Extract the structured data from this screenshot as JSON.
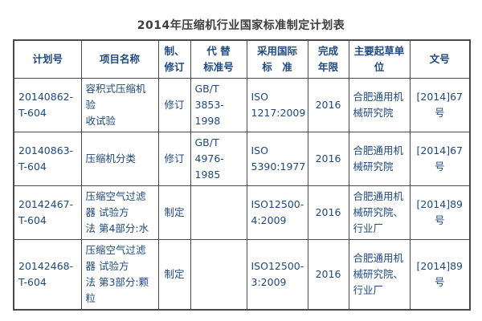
{
  "page": {
    "title": "2014年压缩机行业国家标准制定计划表"
  },
  "colors": {
    "text_navy": "#1F497D",
    "title_gray": "#3d3d3d",
    "border": "#4a4a4a",
    "background": "#ffffff"
  },
  "table": {
    "headers": {
      "plan_no": "计划号",
      "project_name": "项目名称",
      "type": "制、\n修订",
      "replaced_std": "代 替\n标准号",
      "intl_std": "采用国际\n标　准",
      "year": "完成\n年限",
      "drafting_unit": "主要起草单\n位",
      "doc_no": "文号"
    },
    "rows": [
      {
        "plan_no": "20140862-\nT-604",
        "project_name": "容积式压缩机验\n收试验",
        "type": "修订",
        "replaced_std": "GB/T\n3853-\n1998",
        "intl_std": "ISO\n1217:2009",
        "year": "2016",
        "drafting_unit": "合肥通用机\n械研究院",
        "doc_no": "[2014]67号"
      },
      {
        "plan_no": "20140863-\nT-604",
        "project_name": "压缩机分类",
        "type": "修订",
        "replaced_std": "GB/T\n4976-\n1985",
        "intl_std": "ISO\n5390:1977",
        "year": "2016",
        "drafting_unit": "合肥通用机\n械研究院",
        "doc_no": "[2014]67号"
      },
      {
        "plan_no": "20142467-\nT-604",
        "project_name": "压缩空气过滤\n器 试验方\n法 第4部分:水",
        "type": "制定",
        "replaced_std": "",
        "intl_std": "ISO12500-\n4:2009",
        "year": "2016",
        "drafting_unit": "合肥通用机\n械研究院、\n行业厂",
        "doc_no": "[2014]89号"
      },
      {
        "plan_no": "20142468-\nT-604",
        "project_name": "压缩空气过滤\n器 试验方\n法 第3部分:颗\n粒",
        "type": "制定",
        "replaced_std": "",
        "intl_std": "ISO12500-\n3:2009",
        "year": "2016",
        "drafting_unit": "合肥通用机\n械研究院、\n行业厂",
        "doc_no": "[2014]89号"
      }
    ]
  }
}
